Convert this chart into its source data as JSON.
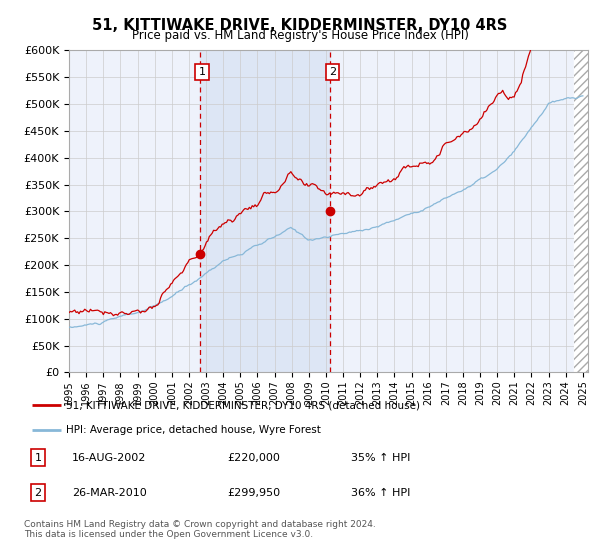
{
  "title": "51, KITTIWAKE DRIVE, KIDDERMINSTER, DY10 4RS",
  "subtitle": "Price paid vs. HM Land Registry's House Price Index (HPI)",
  "red_label": "51, KITTIWAKE DRIVE, KIDDERMINSTER, DY10 4RS (detached house)",
  "blue_label": "HPI: Average price, detached house, Wyre Forest",
  "sale1_date": "16-AUG-2002",
  "sale1_price": 220000,
  "sale1_hpi": "35% ↑ HPI",
  "sale2_date": "26-MAR-2010",
  "sale2_price": 299950,
  "sale2_hpi": "36% ↑ HPI",
  "footer": "Contains HM Land Registry data © Crown copyright and database right 2024.\nThis data is licensed under the Open Government Licence v3.0.",
  "ylim": [
    0,
    600000
  ],
  "yticks": [
    0,
    50000,
    100000,
    150000,
    200000,
    250000,
    300000,
    350000,
    400000,
    450000,
    500000,
    550000,
    600000
  ],
  "x_start_year": 1995,
  "x_end_year": 2025,
  "sale1_x": 2002.62,
  "sale2_x": 2010.23,
  "background_color": "#eef2fb",
  "span_color": "#dde6f5",
  "grid_color": "#cccccc",
  "red_color": "#cc0000",
  "blue_color": "#88b8d8"
}
